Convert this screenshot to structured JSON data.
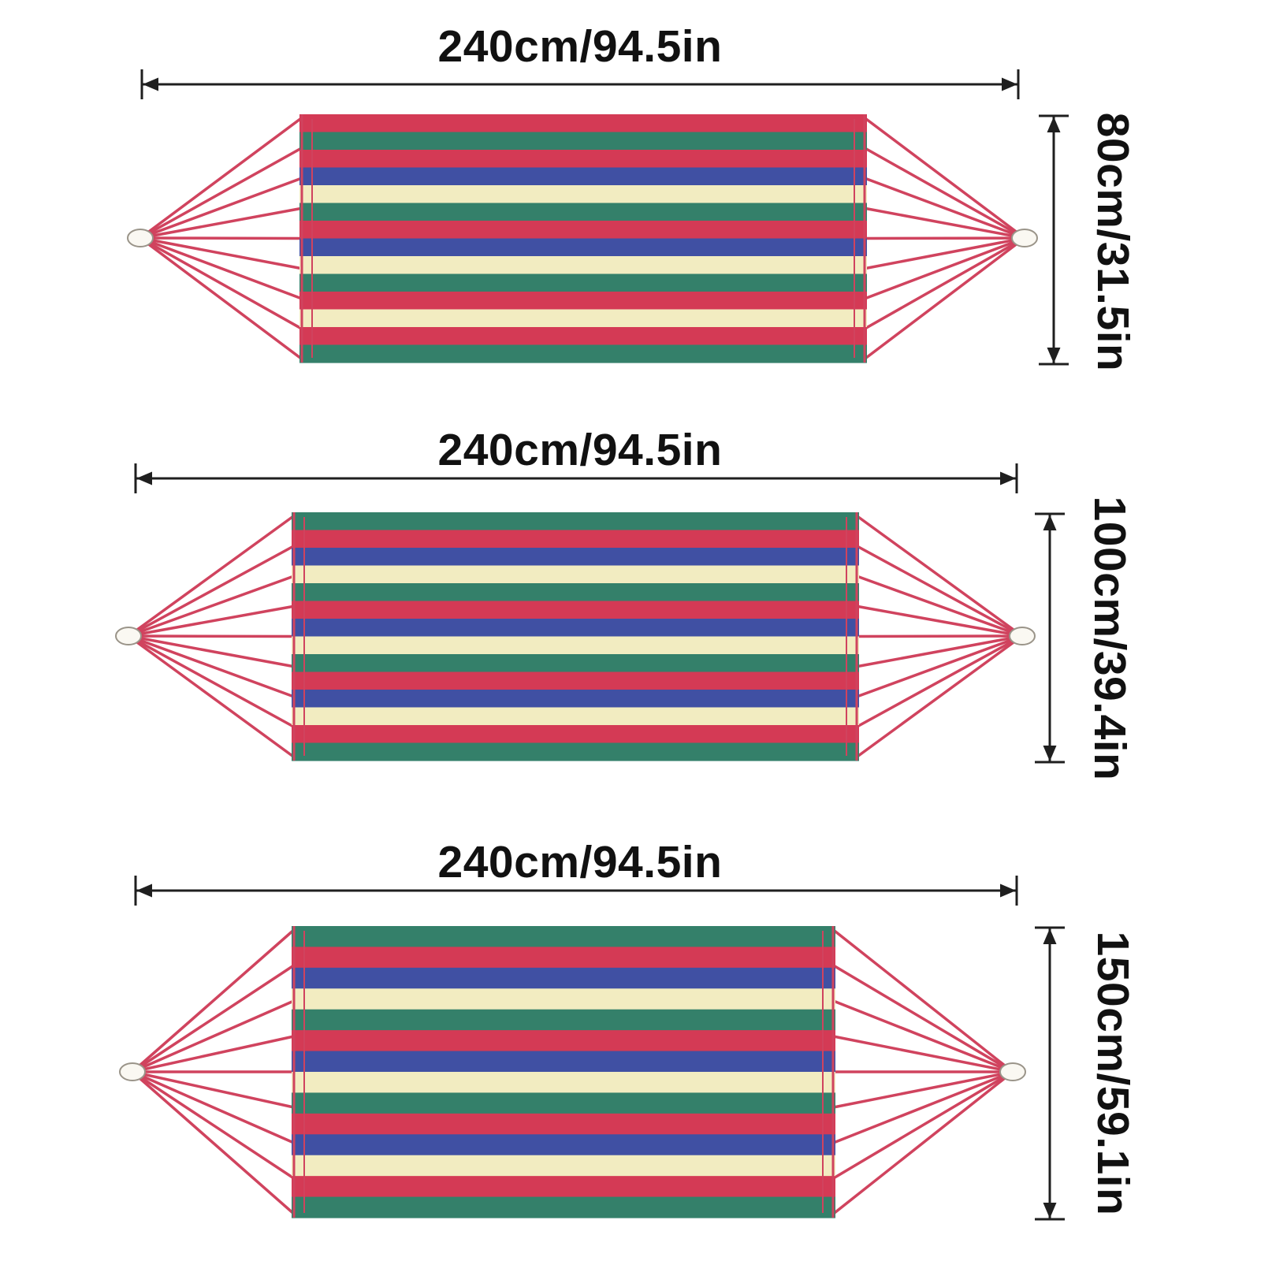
{
  "diagram": {
    "hammocks": [
      {
        "id": "hammock-small",
        "width_label": "240cm/94.5in",
        "height_label": "80cm/31.5in",
        "stripes": [
          "red",
          "green",
          "red",
          "blue",
          "cream",
          "green",
          "red",
          "blue",
          "cream",
          "green",
          "red",
          "cream",
          "red",
          "green"
        ]
      },
      {
        "id": "hammock-medium",
        "width_label": "240cm/94.5in",
        "height_label": "100cm/39.4in",
        "stripes": [
          "green",
          "red",
          "blue",
          "cream",
          "green",
          "red",
          "blue",
          "cream",
          "green",
          "red",
          "blue",
          "cream",
          "red",
          "green"
        ]
      },
      {
        "id": "hammock-large",
        "width_label": "240cm/94.5in",
        "height_label": "150cm/59.1in",
        "stripes": [
          "green",
          "red",
          "blue",
          "cream",
          "green",
          "red",
          "blue",
          "cream",
          "green",
          "red",
          "blue",
          "cream",
          "red",
          "green"
        ]
      }
    ],
    "ropes_per_side": 9,
    "colors": {
      "red": "#d43a55",
      "green": "#34806a",
      "blue": "#4050a3",
      "cream": "#f2ecc1",
      "rope": "#d0435e",
      "ring_fill": "#faf8f2",
      "ring_stroke": "#9a9489",
      "dimension": "#1f1f1f",
      "background": "#ffffff"
    }
  }
}
